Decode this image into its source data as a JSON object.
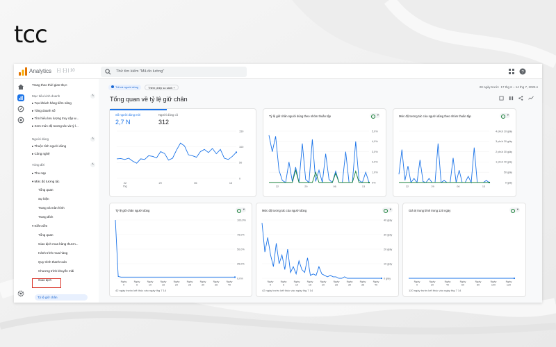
{
  "logo": "tcc",
  "app": {
    "title": "Analytics",
    "account": "[-] :[-]  |  10"
  },
  "search": {
    "placeholder": "Thử tìm kiếm \"Mã đo lường\""
  },
  "sidebar": {
    "realtime": "Trang theo thời gian thực",
    "business": "Mục tiêu kinh doanh",
    "business_items": [
      "Tạo khách hàng tiềm năng",
      "Tăng doanh số",
      "Tìm hiểu lưu lượng truy cập w...",
      "Xem mức độ tương tác và tỷ l..."
    ],
    "users": "Người dùng",
    "users_items": [
      "Thuộc tính người dùng",
      "Công nghệ"
    ],
    "lifecycle": "Vòng đời",
    "lifecycle_items": [
      "Thu nạp",
      "Mức độ tương tác"
    ],
    "engagement_items": [
      "Tổng quan",
      "Sự kiện",
      "Trang và màn hình",
      "Trang đích"
    ],
    "monetization": "Kiếm tiền",
    "monetization_items": [
      "Tổng quan",
      "Giao dịch mua hàng thươn...",
      "Hành trình mua hàng",
      "Quy trình thanh toán",
      "Chương trình khuyến mãi",
      "Giao dịch"
    ],
    "retention": "Tỷ lệ giữ chân"
  },
  "filters": {
    "all_users": "Tất cả người dùng",
    "add_comparison": "Thêm phép so sánh"
  },
  "date": {
    "range_label": "28 ngày trước",
    "range": "17 thg 6 – 14 thg 7, 2025"
  },
  "page_title": "Tổng quan về tỷ lệ giữ chân",
  "colors": {
    "accent": "#1a73e8",
    "secondary": "#188038"
  },
  "cards": {
    "users": {
      "new_label": "Số người dùng mới",
      "new_value": "2,7 N",
      "ret_label": "Người dùng cũ",
      "ret_value": "312"
    },
    "cohort_retention": {
      "title": "Tỷ lệ giữ chân người dùng theo nhóm thuần tập"
    },
    "cohort_engagement": {
      "title": "Mức độ tương tác của người dùng theo nhóm thuần tập"
    },
    "user_retention": {
      "title": "Tỷ lệ giữ chân người dùng",
      "footer": "42 ngày trước kết thúc vào ngày thg 7 14"
    },
    "user_engagement": {
      "title": "Mức độ tương tác của người dùng",
      "footer": "42 ngày trước kết thúc vào ngày thg 7 14"
    },
    "ltv": {
      "title": "Giá trị trung bình trong 120 ngày",
      "footer": "120 ngày trước kết thúc vào ngày thg 7 14"
    }
  },
  "chart_data": [
    {
      "type": "line",
      "title": "",
      "x_ticks": [
        "22 thg",
        "29",
        "06",
        "13"
      ],
      "y_ticks": [
        "150",
        "100",
        "50",
        "0"
      ],
      "ylim": [
        0,
        150
      ],
      "series": [
        {
          "name": "Số người dùng mới",
          "values": [
            62,
            63,
            60,
            64,
            55,
            48,
            62,
            60,
            72,
            70,
            65,
            85,
            79,
            58,
            64,
            90,
            112,
            103,
            75,
            72,
            67,
            85,
            92,
            82,
            95,
            78,
            92,
            64,
            60,
            70,
            83
          ]
        }
      ]
    },
    {
      "type": "line",
      "title": "Tỷ lệ giữ chân người dùng theo nhóm thuần tập",
      "x_ticks": [
        "22",
        "29",
        "06",
        "13"
      ],
      "y_ticks": [
        "5,0%",
        "4,0%",
        "3,0%",
        "2,0%",
        "1,0%",
        "0%"
      ],
      "ylim": [
        0,
        5
      ],
      "series": [
        {
          "name": "",
          "values": [
            4.6,
            3.0,
            4.5,
            1.2,
            0.2,
            0,
            2.0,
            0.1,
            1.5,
            0,
            3.8,
            0.3,
            0,
            4.2,
            0.1,
            1.2,
            0,
            2.8,
            0.3,
            0,
            1.1,
            0,
            0,
            3.0,
            0,
            0,
            4.0,
            0.2,
            0,
            1.0,
            0
          ]
        },
        {
          "name": "",
          "values": [
            0,
            0,
            0,
            0,
            0,
            0,
            0,
            0,
            1.2,
            0,
            0,
            0,
            0,
            0,
            1.0,
            0,
            0,
            0,
            0,
            0,
            0.9,
            0,
            0,
            0,
            0,
            0,
            1.1,
            0,
            0,
            0,
            0
          ]
        }
      ]
    },
    {
      "type": "line",
      "title": "Mức độ tương tác của người dùng theo nhóm thuần tập",
      "x_ticks": [
        "22",
        "29",
        "06",
        "13"
      ],
      "y_ticks": [
        "4 phút 10 giây",
        "3 phút 20 giây",
        "2 phút 30 giây",
        "1 phút 40 giây",
        "50 giây",
        "0 giây"
      ],
      "ylim": [
        0,
        250
      ],
      "series": [
        {
          "name": "",
          "values": [
            40,
            160,
            10,
            80,
            0,
            20,
            0,
            110,
            5,
            0,
            20,
            0,
            0,
            190,
            0,
            10,
            0,
            0,
            120,
            0,
            60,
            0,
            0,
            30,
            0,
            170,
            0,
            0,
            0,
            10,
            0
          ]
        },
        {
          "name": "",
          "values": [
            0,
            0,
            0,
            0,
            0,
            0,
            0,
            0,
            0,
            0,
            0,
            0,
            0,
            0,
            0,
            0,
            0,
            0,
            0,
            0,
            0,
            0,
            0,
            0,
            0,
            0,
            0,
            0,
            0,
            0,
            0
          ]
        }
      ]
    },
    {
      "type": "line",
      "title": "Tỷ lệ giữ chân người dùng",
      "x_ticks": [
        "Ngày 0",
        "Ngày 5",
        "Ngày 10",
        "Ngày 15",
        "Ngày 20",
        "Ngày 25",
        "Ngày 30",
        "Ngày 35",
        "Ngày 40"
      ],
      "y_ticks": [
        "100,0%",
        "75,0%",
        "50,0%",
        "25,0%",
        "0,0%"
      ],
      "ylim": [
        0,
        100
      ],
      "series": [
        {
          "name": "",
          "values": [
            100,
            3,
            2,
            2,
            2,
            2,
            2,
            2,
            2,
            2,
            2,
            2,
            2,
            2,
            2,
            2,
            2,
            2,
            2,
            2,
            2,
            2,
            2,
            2,
            2,
            2,
            2,
            2,
            2,
            2,
            2,
            2,
            2,
            2,
            2,
            2,
            2,
            2,
            2,
            2,
            2,
            2,
            2
          ]
        }
      ]
    },
    {
      "type": "line",
      "title": "Mức độ tương tác của người dùng",
      "x_ticks": [
        "Ngày 0",
        "Ngày 5",
        "Ngày 10",
        "Ngày 15",
        "Ngày 20",
        "Ngày 25",
        "Ngày 30",
        "Ngày 35",
        "Ngày 40"
      ],
      "y_ticks": [
        "40 giây",
        "30 giây",
        "20 giây",
        "10 giây",
        "0 giây"
      ],
      "ylim": [
        0,
        40
      ],
      "series": [
        {
          "name": "",
          "values": [
            38,
            18,
            28,
            16,
            8,
            24,
            10,
            16,
            6,
            20,
            4,
            8,
            3,
            12,
            6,
            4,
            14,
            2,
            3,
            2,
            8,
            3,
            2,
            1,
            2,
            1,
            1,
            0,
            0,
            1,
            0,
            0,
            0,
            0,
            0,
            0,
            0,
            0,
            0,
            0,
            0,
            0,
            0
          ]
        }
      ]
    },
    {
      "type": "line",
      "title": "Giá trị trung bình trong 120 ngày",
      "x_ticks": [
        "Ngày 0",
        "Ngày 20",
        "Ngày 40",
        "Ngày 60",
        "Ngày 80",
        "Ngày 100",
        "Ngày 120"
      ],
      "y_ticks": [],
      "ylim": [
        0,
        1
      ],
      "series": [
        {
          "name": "",
          "values": [
            0,
            0,
            0,
            0,
            0,
            0,
            0,
            0,
            0,
            0,
            0,
            0,
            0
          ]
        }
      ]
    }
  ]
}
